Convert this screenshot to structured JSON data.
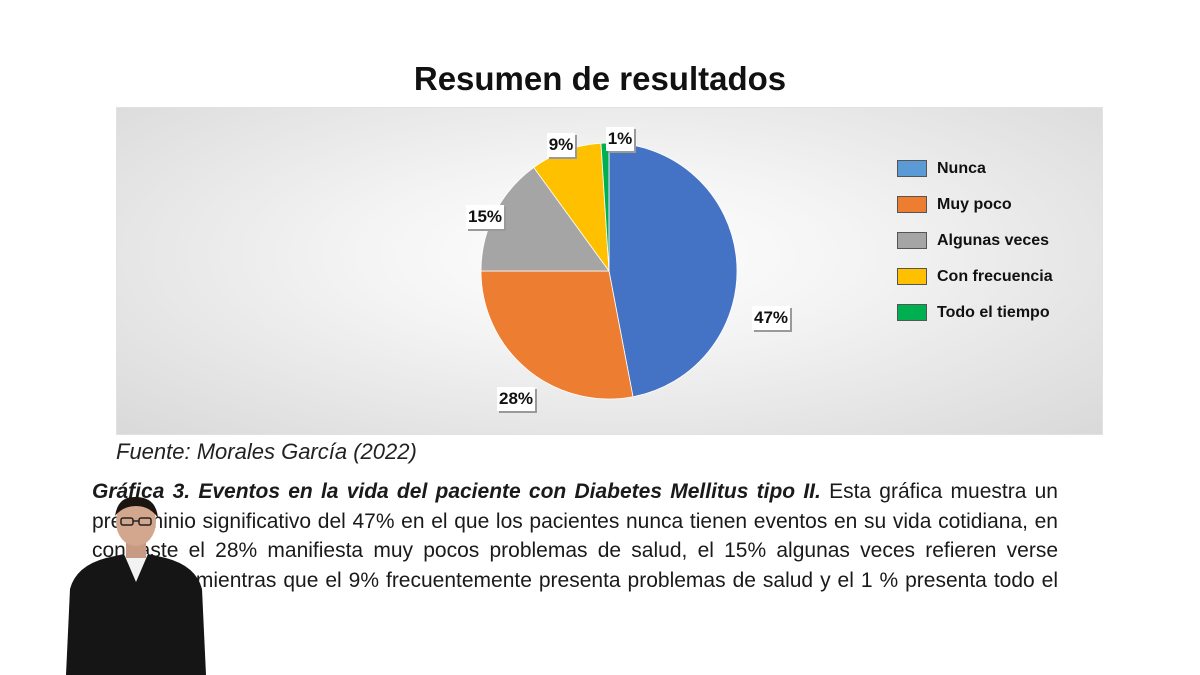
{
  "slide": {
    "title": "Resumen de resultados",
    "source": "Fuente: Morales García (2022)",
    "caption_lead": "Gráfica 3. Eventos en la vida del paciente con Diabetes Mellitus tipo II.",
    "caption_body": "Esta gráfica muestra un predominio significativo del 47% en el que los pacientes nunca tienen eventos en su vida cotidiana, en contraste el 28% manifiesta muy pocos problemas de salud, el 15% algunas veces refieren verse afectados, mientras que el 9% frecuentemente presenta problemas de salud y el 1 % presenta todo el tiempo."
  },
  "chart_data": {
    "type": "pie",
    "title": "",
    "categories": [
      "Nunca",
      "Muy poco",
      "Algunas veces",
      "Con frecuencia",
      "Todo el tiempo"
    ],
    "values": [
      47,
      28,
      15,
      9,
      1
    ],
    "data_labels": [
      "47%",
      "28%",
      "15%",
      "9%",
      "1%"
    ],
    "colors": [
      "#4472C4",
      "#ED7D31",
      "#A5A5A5",
      "#FFC000",
      "#00B050"
    ],
    "legend_position": "right",
    "grid": false
  },
  "presenter": {
    "icon": "person-icon"
  }
}
